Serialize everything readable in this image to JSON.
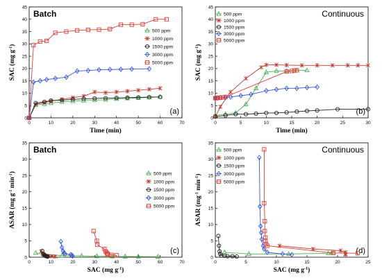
{
  "chart_data": [
    {
      "type": "line",
      "panel_label": "(a)",
      "title": "Batch",
      "xlabel": "Time (min)",
      "ylabel": "SAC (mg g-1)",
      "xlim": [
        0,
        70
      ],
      "ylim": [
        0,
        45
      ],
      "xticks": [
        0,
        10,
        20,
        30,
        40,
        50,
        60,
        70
      ],
      "yticks": [
        0,
        5,
        10,
        15,
        20,
        25,
        30,
        35,
        40,
        45
      ],
      "legend_position": "right-middle",
      "series": [
        {
          "name": "500 ppm",
          "color": "#4caf50",
          "marker": "triangle",
          "x": [
            0,
            3,
            7,
            10,
            15,
            20,
            25,
            30,
            35,
            40,
            45,
            50,
            55,
            60
          ],
          "y": [
            0,
            5.2,
            5.6,
            6.0,
            6.5,
            6.8,
            7.0,
            7.2,
            7.4,
            7.7,
            7.9,
            8.1,
            8.3,
            8.5
          ]
        },
        {
          "name": "1000 ppm",
          "color": "#c0392b",
          "marker": "x",
          "x": [
            0,
            3,
            7,
            10,
            15,
            20,
            25,
            30,
            35,
            40,
            45,
            50,
            55,
            60
          ],
          "y": [
            0,
            5.5,
            6.2,
            6.8,
            7.5,
            8.2,
            8.8,
            10.5,
            10.2,
            10.5,
            10.8,
            11.2,
            11.6,
            12.0
          ]
        },
        {
          "name": "1500 ppm",
          "color": "#222222",
          "marker": "circle",
          "x": [
            0,
            3,
            7,
            10,
            15,
            20,
            25,
            30,
            35,
            40,
            45,
            50,
            55,
            60
          ],
          "y": [
            0,
            6.0,
            6.5,
            7.0,
            7.2,
            7.5,
            7.7,
            7.9,
            8.0,
            8.1,
            8.2,
            8.3,
            8.4,
            8.5
          ]
        },
        {
          "name": "3000 ppm",
          "color": "#3355dd",
          "marker": "diamond",
          "x": [
            0,
            2,
            5,
            8,
            12,
            17,
            22,
            27,
            32,
            37,
            42,
            47,
            55
          ],
          "y": [
            0,
            14.5,
            15.0,
            15.5,
            16.0,
            16.5,
            19.0,
            19.2,
            19.5,
            19.6,
            19.7,
            19.8,
            19.9
          ]
        },
        {
          "name": "5000 ppm",
          "color": "#e53935",
          "marker": "square",
          "x": [
            0,
            2,
            5,
            8,
            12,
            17,
            22,
            27,
            32,
            37,
            42,
            47,
            52,
            58,
            63
          ],
          "y": [
            0,
            29.5,
            31.0,
            31.2,
            34.5,
            35.0,
            35.5,
            35.7,
            35.8,
            36.0,
            37.8,
            37.8,
            38.0,
            40.0,
            40.0
          ]
        }
      ]
    },
    {
      "type": "line",
      "panel_label": "(b)",
      "title": "Continuous",
      "xlabel": "Time (min)",
      "ylabel": "SAC (mg g-1)",
      "xlim": [
        0,
        30
      ],
      "ylim": [
        0,
        45
      ],
      "xticks": [
        0,
        5,
        10,
        15,
        20,
        25,
        30
      ],
      "yticks": [
        0,
        5,
        10,
        15,
        20,
        25,
        30,
        35,
        40,
        45
      ],
      "legend_position": "top-left",
      "series": [
        {
          "name": "500 ppm",
          "color": "#4caf50",
          "marker": "triangle",
          "x": [
            0,
            2,
            4,
            6,
            8,
            10,
            12,
            14,
            16,
            18
          ],
          "y": [
            1.0,
            1.5,
            2.0,
            5.5,
            12.0,
            18.5,
            19.0,
            19.0,
            19.2,
            19.3
          ]
        },
        {
          "name": "1000 ppm",
          "color": "#c0392b",
          "marker": "x",
          "x": [
            0,
            1,
            3,
            6,
            9,
            10,
            12,
            14,
            17,
            20,
            23,
            26,
            28,
            30
          ],
          "y": [
            0.5,
            4.5,
            10.5,
            16.0,
            20.5,
            21.5,
            21.5,
            21.4,
            21.3,
            21.3,
            21.3,
            21.3,
            21.3,
            21.3
          ]
        },
        {
          "name": "1500 ppm",
          "color": "#222222",
          "marker": "circle",
          "x": [
            0,
            2,
            4,
            6,
            8,
            10,
            12,
            14,
            16,
            18,
            20,
            24,
            30
          ],
          "y": [
            0.5,
            1.0,
            1.5,
            1.5,
            1.7,
            2.0,
            2.0,
            2.2,
            2.5,
            2.8,
            3.0,
            3.5,
            3.5
          ]
        },
        {
          "name": "3000 ppm",
          "color": "#3355dd",
          "marker": "diamond",
          "x": [
            0,
            0.5,
            1,
            2,
            3,
            5,
            7,
            10,
            12,
            14,
            16,
            18,
            20
          ],
          "y": [
            8.0,
            8.1,
            8.2,
            8.3,
            8.5,
            9.0,
            9.5,
            11.0,
            11.5,
            12.0,
            12.0,
            12.3,
            12.5
          ]
        },
        {
          "name": "5000 ppm",
          "color": "#e53935",
          "marker": "square",
          "x": [
            0,
            0.2,
            0.5,
            1,
            1.5,
            2,
            14,
            15,
            15.5,
            16
          ],
          "y": [
            8.0,
            8.0,
            8.1,
            8.2,
            8.3,
            8.5,
            18.8,
            19.0,
            19.2,
            19.3
          ]
        }
      ]
    },
    {
      "type": "scatter",
      "panel_label": "(c)",
      "title": "Batch",
      "xlabel": "SAC (mg g-1)",
      "ylabel": "ASAR (mg g-1 min-1)",
      "xlim": [
        0,
        70
      ],
      "ylim": [
        0,
        35
      ],
      "xticks": [
        0,
        10,
        20,
        30,
        40,
        50,
        60,
        70
      ],
      "yticks": [
        0,
        5,
        10,
        15,
        20,
        25,
        30,
        35
      ],
      "legend_position": "right-middle",
      "series": [
        {
          "name": "500 ppm",
          "color": "#4caf50",
          "marker": "triangle",
          "x": [
            3,
            7,
            15,
            24,
            31,
            38,
            44,
            50,
            59
          ],
          "y": [
            1.3,
            0.8,
            0.5,
            0.4,
            0.3,
            0.25,
            0.2,
            0.2,
            0.15
          ]
        },
        {
          "name": "1000 ppm",
          "color": "#c0392b",
          "marker": "x",
          "x": [
            5.5,
            6.2,
            6.8,
            7.5,
            8.2,
            8.8,
            10.5,
            12.0
          ],
          "y": [
            1.8,
            0.9,
            0.7,
            0.5,
            0.4,
            0.35,
            0.3,
            0.2
          ]
        },
        {
          "name": "1500 ppm",
          "color": "#222222",
          "marker": "circle",
          "x": [
            6.0,
            6.5,
            7.0,
            7.2,
            7.5,
            7.8,
            8.2,
            8.5
          ],
          "y": [
            1.9,
            1.0,
            0.7,
            0.5,
            0.4,
            0.3,
            0.25,
            0.2
          ]
        },
        {
          "name": "3000 ppm",
          "color": "#3355dd",
          "marker": "diamond",
          "x": [
            14.5,
            15.0,
            15.5,
            16.0,
            16.5,
            19.0,
            19.5,
            19.9
          ],
          "y": [
            4.8,
            3.0,
            1.9,
            1.3,
            1.0,
            0.8,
            0.6,
            0.4
          ]
        },
        {
          "name": "5000 ppm",
          "color": "#e53935",
          "marker": "square",
          "x": [
            29.5,
            31.0,
            31.2,
            34.5,
            35.0,
            35.5,
            35.8,
            36.0,
            37.8,
            40.0
          ],
          "y": [
            8.0,
            5.0,
            3.8,
            2.5,
            1.8,
            1.4,
            1.1,
            0.9,
            0.7,
            0.6
          ]
        }
      ]
    },
    {
      "type": "scatter",
      "panel_label": "(d)",
      "title": "Continuous",
      "xlabel": "SAC (mg g-1)",
      "ylabel": "ASAR (mg-1 min-1)",
      "xlim": [
        0,
        25
      ],
      "ylim": [
        0,
        35
      ],
      "xticks": [
        0,
        5,
        10,
        15,
        20,
        25
      ],
      "yticks": [
        0,
        5,
        10,
        15,
        20,
        25,
        30,
        35
      ],
      "legend_position": "top-left",
      "series": [
        {
          "name": "500 ppm",
          "color": "#4caf50",
          "marker": "triangle",
          "x": [
            1.5,
            5.5,
            12.0,
            18.5,
            19.0,
            19.3
          ],
          "y": [
            1.5,
            1.0,
            1.0,
            1.2,
            1.2,
            1.2
          ]
        },
        {
          "name": "1000 ppm",
          "color": "#c0392b",
          "marker": "x",
          "x": [
            10.5,
            16.0,
            20.5,
            21.3,
            21.3,
            21.3
          ],
          "y": [
            3.5,
            2.5,
            2.0,
            1.5,
            1.0,
            0.8
          ]
        },
        {
          "name": "1500 ppm",
          "color": "#222222",
          "marker": "circle",
          "x": [
            0.5,
            0.6,
            0.7,
            0.8,
            1.0,
            1.5,
            2.0,
            2.8,
            3.5
          ],
          "y": [
            6.5,
            3.5,
            1.8,
            1.0,
            0.5,
            0.4,
            0.3,
            0.3,
            0.2
          ]
        },
        {
          "name": "3000 ppm",
          "color": "#3355dd",
          "marker": "diamond",
          "x": [
            7.2,
            7.3,
            7.4,
            7.5,
            7.6,
            7.8,
            8.0,
            8.5,
            11.0,
            12.5
          ],
          "y": [
            30.5,
            15.5,
            9.5,
            7.5,
            5.5,
            3.5,
            2.5,
            1.5,
            1.0,
            0.8
          ]
        },
        {
          "name": "5000 ppm",
          "color": "#e53935",
          "marker": "square",
          "x": [
            8.0,
            8.0,
            8.1,
            8.1,
            8.2,
            8.2,
            8.3,
            8.5,
            19.3,
            23.3
          ],
          "y": [
            33.0,
            16.5,
            11.0,
            8.0,
            6.0,
            5.0,
            4.0,
            3.5,
            1.3,
            1.2
          ]
        }
      ]
    }
  ]
}
